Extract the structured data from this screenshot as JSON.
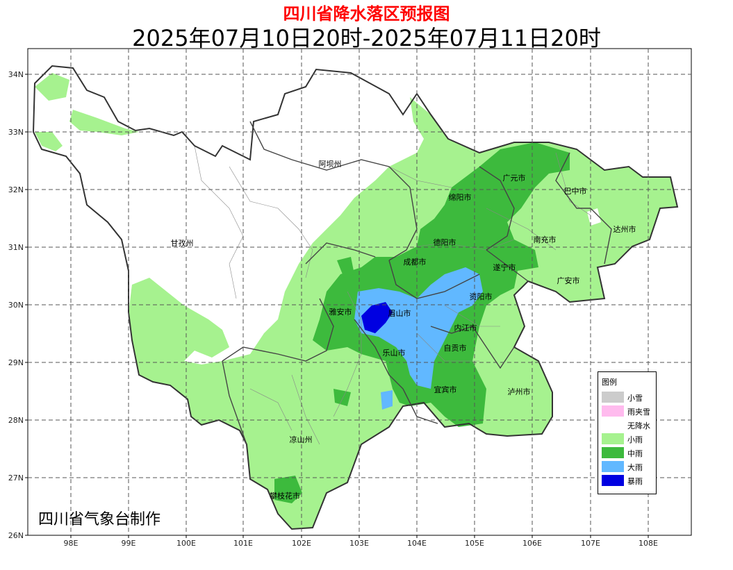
{
  "title": "四川省降水落区预报图",
  "subtitle": "2025年07月10日20时-2025年07月11日20时",
  "axes": {
    "lat_labels": [
      "34N",
      "33N",
      "32N",
      "31N",
      "30N",
      "29N",
      "28N",
      "27N",
      "26N"
    ],
    "lon_labels": [
      "98E",
      "99E",
      "100E",
      "101E",
      "102E",
      "103E",
      "104E",
      "105E",
      "106E",
      "107E",
      "108E"
    ]
  },
  "cities": [
    {
      "name": "阿坝州"
    },
    {
      "name": "甘孜州"
    },
    {
      "name": "广元市"
    },
    {
      "name": "巴中市"
    },
    {
      "name": "绵阳市"
    },
    {
      "name": "达州市"
    },
    {
      "name": "德阳市"
    },
    {
      "name": "南充市"
    },
    {
      "name": "成都市"
    },
    {
      "name": "遂宁市"
    },
    {
      "name": "广安市"
    },
    {
      "name": "资阳市"
    },
    {
      "name": "雅安市"
    },
    {
      "name": "眉山市"
    },
    {
      "name": "内江市"
    },
    {
      "name": "自贡市"
    },
    {
      "name": "乐山市"
    },
    {
      "name": "宜宾市"
    },
    {
      "name": "泸州市"
    },
    {
      "name": "凉山州"
    },
    {
      "name": "攀枝花市"
    }
  ],
  "legend": {
    "title": "图例",
    "items": [
      {
        "label": "小雪",
        "color": "#cccccc"
      },
      {
        "label": "雨夹雪",
        "color": "#ffbbee"
      },
      {
        "label": "无降水",
        "color": "#ffffff"
      },
      {
        "label": "小雨",
        "color": "#a6f28f"
      },
      {
        "label": "中雨",
        "color": "#3dba3d"
      },
      {
        "label": "大雨",
        "color": "#61b8ff"
      },
      {
        "label": "暴雨",
        "color": "#0000e1"
      }
    ]
  },
  "credit": "四川省气象台制作"
}
